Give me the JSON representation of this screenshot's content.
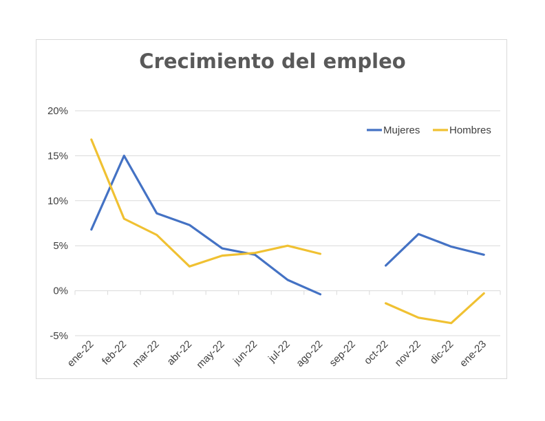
{
  "chart_data": {
    "type": "line",
    "title": "Crecimiento del empleo",
    "xlabel": "",
    "ylabel": "",
    "categories": [
      "ene-22",
      "feb-22",
      "mar-22",
      "abr-22",
      "may-22",
      "jun-22",
      "jul-22",
      "ago-22",
      "sep-22",
      "oct-22",
      "nov-22",
      "dic-22",
      "ene-23"
    ],
    "yticks": [
      "-5%",
      "0%",
      "5%",
      "10%",
      "15%",
      "20%"
    ],
    "ytick_values": [
      -5,
      0,
      5,
      10,
      15,
      20
    ],
    "ylim": [
      -5,
      20
    ],
    "grid": true,
    "legend_position": "top-right",
    "series": [
      {
        "name": "Mujeres",
        "color": "#4472c4",
        "values": [
          6.8,
          15.0,
          8.6,
          7.3,
          4.7,
          4.0,
          1.2,
          -0.4,
          null,
          2.8,
          6.3,
          4.9,
          4.0
        ]
      },
      {
        "name": "Hombres",
        "color": "#f0c132",
        "values": [
          16.8,
          8.0,
          6.2,
          2.7,
          3.9,
          4.2,
          5.0,
          4.1,
          null,
          -1.4,
          -3.0,
          -3.6,
          -0.3
        ]
      }
    ]
  }
}
